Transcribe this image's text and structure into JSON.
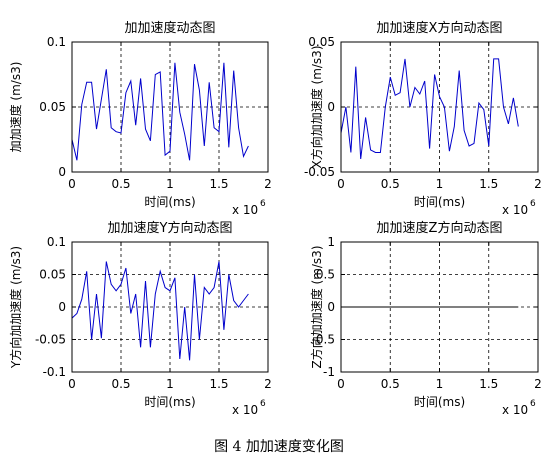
{
  "figure_caption": "图 4  加加速度变化图",
  "chart_data": [
    {
      "type": "line",
      "title": "加加速度动态图",
      "xlabel": "时间(ms)",
      "ylabel": "加加速度 (m/s3)",
      "x_multiplier": "x 10",
      "x_exponent": "6",
      "xlim": [
        0,
        2
      ],
      "ylim": [
        0,
        0.1
      ],
      "xticks": [
        "0",
        "0.5",
        "1",
        "1.5",
        "2"
      ],
      "yticks": [
        "0",
        "0.05",
        "0.1"
      ],
      "grid": true,
      "line_color": "#0000cc",
      "x": [
        0.0,
        0.05,
        0.1,
        0.15,
        0.2,
        0.25,
        0.3,
        0.35,
        0.4,
        0.45,
        0.5,
        0.55,
        0.6,
        0.65,
        0.7,
        0.75,
        0.8,
        0.85,
        0.9,
        0.95,
        1.0,
        1.05,
        1.1,
        1.15,
        1.2,
        1.25,
        1.3,
        1.35,
        1.4,
        1.45,
        1.5,
        1.55,
        1.6,
        1.65,
        1.7,
        1.75,
        1.8
      ],
      "values": [
        0.025,
        0.009,
        0.052,
        0.069,
        0.069,
        0.033,
        0.056,
        0.079,
        0.034,
        0.031,
        0.03,
        0.061,
        0.07,
        0.036,
        0.072,
        0.033,
        0.024,
        0.075,
        0.077,
        0.013,
        0.016,
        0.084,
        0.046,
        0.029,
        0.009,
        0.083,
        0.063,
        0.02,
        0.069,
        0.034,
        0.031,
        0.084,
        0.019,
        0.078,
        0.034,
        0.012,
        0.02
      ]
    },
    {
      "type": "line",
      "title": "加加速度X方向动态图",
      "xlabel": "时间(ms)",
      "ylabel": "X方向加加速度 (m/s3)",
      "x_multiplier": "x 10",
      "x_exponent": "6",
      "xlim": [
        0,
        2
      ],
      "ylim": [
        -0.05,
        0.05
      ],
      "xticks": [
        "0",
        "0.5",
        "1",
        "1.5",
        "2"
      ],
      "yticks": [
        "-0.05",
        "0",
        "0.05"
      ],
      "grid": true,
      "line_color": "#0000cc",
      "x": [
        0.0,
        0.05,
        0.1,
        0.15,
        0.2,
        0.25,
        0.3,
        0.35,
        0.4,
        0.45,
        0.5,
        0.55,
        0.6,
        0.65,
        0.7,
        0.75,
        0.8,
        0.85,
        0.9,
        0.95,
        1.0,
        1.05,
        1.1,
        1.15,
        1.2,
        1.25,
        1.3,
        1.35,
        1.4,
        1.45,
        1.5,
        1.55,
        1.6,
        1.65,
        1.7,
        1.75,
        1.8
      ],
      "values": [
        -0.02,
        0.0,
        -0.035,
        0.031,
        -0.04,
        -0.008,
        -0.033,
        -0.035,
        -0.035,
        0.0,
        0.023,
        0.009,
        0.011,
        0.037,
        0.0,
        0.015,
        0.01,
        0.02,
        -0.032,
        0.025,
        0.008,
        0.0,
        -0.034,
        -0.015,
        0.028,
        -0.018,
        -0.03,
        -0.028,
        0.003,
        -0.002,
        -0.03,
        0.037,
        0.037,
        0.0,
        -0.013,
        0.007,
        -0.015
      ]
    },
    {
      "type": "line",
      "title": "加加速度Y方向动态图",
      "xlabel": "时间(ms)",
      "ylabel": "Y方向加加速度 (m/s3)",
      "x_multiplier": "x 10",
      "x_exponent": "6",
      "xlim": [
        0,
        2
      ],
      "ylim": [
        -0.1,
        0.1
      ],
      "xticks": [
        "0",
        "0.5",
        "1",
        "1.5",
        "2"
      ],
      "yticks": [
        "-0.1",
        "-0.05",
        "0",
        "0.05",
        "0.1"
      ],
      "grid": true,
      "line_color": "#0000cc",
      "x": [
        0.0,
        0.05,
        0.1,
        0.15,
        0.2,
        0.25,
        0.3,
        0.35,
        0.4,
        0.45,
        0.5,
        0.55,
        0.6,
        0.65,
        0.7,
        0.75,
        0.8,
        0.85,
        0.9,
        0.95,
        1.0,
        1.05,
        1.1,
        1.15,
        1.2,
        1.25,
        1.3,
        1.35,
        1.4,
        1.45,
        1.5,
        1.55,
        1.6,
        1.65,
        1.7,
        1.75,
        1.8
      ],
      "values": [
        -0.017,
        -0.01,
        0.012,
        0.055,
        -0.05,
        0.02,
        -0.048,
        0.07,
        0.035,
        0.025,
        0.035,
        0.06,
        -0.01,
        0.02,
        -0.062,
        0.04,
        -0.062,
        0.02,
        0.055,
        0.03,
        0.025,
        0.045,
        -0.08,
        0.0,
        -0.082,
        0.05,
        -0.05,
        0.03,
        0.02,
        0.03,
        0.07,
        -0.035,
        0.05,
        0.01,
        0.0,
        0.01,
        0.02
      ]
    },
    {
      "type": "line",
      "title": "加加速度Z方向动态图",
      "xlabel": "时间(ms)",
      "ylabel": "Z方向加加速度 (m/s3)",
      "x_multiplier": "x 10",
      "x_exponent": "6",
      "xlim": [
        0,
        2
      ],
      "ylim": [
        -1,
        1
      ],
      "xticks": [
        "0",
        "0.5",
        "1",
        "1.5",
        "2"
      ],
      "yticks": [
        "-1",
        "-0.5",
        "0",
        "0.5",
        "1"
      ],
      "grid": true,
      "line_color": "#000000",
      "x": [
        0.0,
        1.8
      ],
      "values": [
        0,
        0
      ]
    }
  ]
}
